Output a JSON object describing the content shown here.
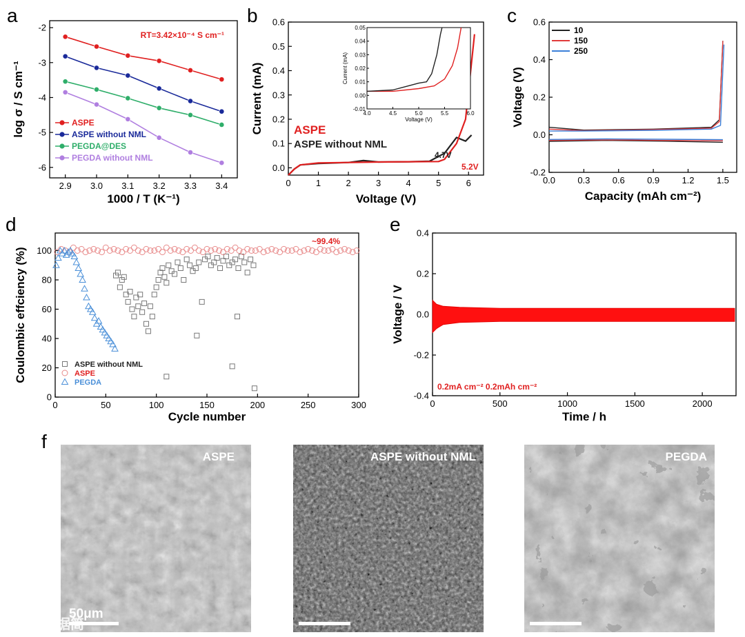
{
  "panel_labels": {
    "a": "a",
    "b": "b",
    "c": "c",
    "d": "d",
    "e": "e",
    "f": "f"
  },
  "colors": {
    "red": "#e02020",
    "blue": "#1a2a9a",
    "green": "#2fae6a",
    "purple": "#b07fe0",
    "black": "#222222",
    "gray": "#777777",
    "lightblue": "#4a8fd8",
    "c150": "#e03a3a",
    "c250": "#3a7fd8"
  },
  "chart_data": [
    {
      "panel": "a",
      "type": "line",
      "xlabel": "1000 / T (K⁻¹)",
      "ylabel": "log σ / S cm⁻¹",
      "xlim": [
        2.85,
        3.45
      ],
      "ylim": [
        -6.3,
        -1.8
      ],
      "xticks": [
        "2.9",
        "3.0",
        "3.1",
        "3.2",
        "3.3",
        "3.4"
      ],
      "yticks": [
        "-2",
        "-3",
        "-4",
        "-5",
        "-6"
      ],
      "x": [
        2.9,
        3.0,
        3.1,
        3.2,
        3.3,
        3.4
      ],
      "annotation": "RT=3.42×10⁻⁴ S cm⁻¹",
      "series": [
        {
          "name": "ASPE",
          "values": [
            -2.26,
            -2.54,
            -2.8,
            -2.95,
            -3.22,
            -3.48
          ]
        },
        {
          "name": "ASPE without NML",
          "values": [
            -2.82,
            -3.15,
            -3.37,
            -3.74,
            -4.1,
            -4.4
          ]
        },
        {
          "name": "PEGDA@DES",
          "values": [
            -3.54,
            -3.77,
            -4.02,
            -4.3,
            -4.5,
            -4.78
          ]
        },
        {
          "name": "PEGDA without NML",
          "values": [
            -3.85,
            -4.2,
            -4.62,
            -5.15,
            -5.57,
            -5.87
          ]
        }
      ]
    },
    {
      "panel": "b",
      "type": "line",
      "xlabel": "Voltage (V)",
      "ylabel": "Current (mA)",
      "xlim": [
        0,
        6.5
      ],
      "ylim": [
        -0.03,
        0.6
      ],
      "xticks": [
        "0",
        "1",
        "2",
        "3",
        "4",
        "5",
        "6"
      ],
      "yticks": [
        "0.0",
        "0.1",
        "0.2",
        "0.3",
        "0.4",
        "0.5",
        "0.6"
      ],
      "annotations": [
        "4.7V",
        "5.2V"
      ],
      "series": [
        {
          "name": "ASPE",
          "x": [
            0,
            0.2,
            0.4,
            1,
            2,
            3,
            4,
            5,
            5.2,
            5.6,
            5.9,
            6.2
          ],
          "values": [
            -0.03,
            -0.005,
            0.012,
            0.02,
            0.022,
            0.024,
            0.025,
            0.026,
            0.035,
            0.1,
            0.2,
            0.55
          ]
        },
        {
          "name": "ASPE without NML",
          "x": [
            0,
            0.2,
            0.4,
            1,
            2,
            2.5,
            3,
            4,
            4.7,
            5.2,
            5.6,
            5.9,
            6.1
          ],
          "values": [
            -0.03,
            -0.005,
            0.012,
            0.018,
            0.022,
            0.03,
            0.024,
            0.025,
            0.027,
            0.06,
            0.125,
            0.11,
            0.135
          ]
        }
      ],
      "inset": {
        "xlabel": "Voltage (V)",
        "ylabel": "Current (mA)",
        "xlim": [
          4.0,
          6.0
        ],
        "ylim": [
          -0.01,
          0.05
        ],
        "xticks": [
          "4.0",
          "4.5",
          "5.0",
          "5.5",
          "6.0"
        ],
        "yticks": [
          "-0.01",
          "0.00",
          "0.01",
          "0.02",
          "0.03",
          "0.04",
          "0.05"
        ],
        "series": [
          {
            "name": "ASPE",
            "x": [
              4.0,
              4.5,
              5.0,
              5.3,
              5.5,
              5.65,
              5.75,
              5.82
            ],
            "values": [
              0.003,
              0.003,
              0.005,
              0.007,
              0.012,
              0.022,
              0.035,
              0.05
            ]
          },
          {
            "name": "ASPE without NML",
            "x": [
              4.0,
              4.5,
              4.8,
              5.0,
              5.15,
              5.25,
              5.35,
              5.42,
              5.45
            ],
            "values": [
              0.003,
              0.004,
              0.007,
              0.009,
              0.01,
              0.016,
              0.03,
              0.045,
              0.05
            ]
          }
        ]
      }
    },
    {
      "panel": "c",
      "type": "line",
      "xlabel": "Capacity (mAh cm⁻²)",
      "ylabel": "Voltage (V)",
      "xlim": [
        0,
        1.62
      ],
      "ylim": [
        -0.2,
        0.6
      ],
      "xticks": [
        "0.0",
        "0.3",
        "0.6",
        "0.9",
        "1.2",
        "1.5"
      ],
      "yticks": [
        "0.6",
        "0.4",
        "0.2",
        "0.0",
        "-0.2"
      ],
      "series": [
        {
          "name": "10",
          "charge": [
            [
              0,
              0.04
            ],
            [
              0.3,
              0.025
            ],
            [
              0.9,
              0.03
            ],
            [
              1.4,
              0.04
            ],
            [
              1.47,
              0.08
            ],
            [
              1.5,
              0.5
            ]
          ],
          "discharge": [
            [
              0,
              -0.035
            ],
            [
              0.5,
              -0.03
            ],
            [
              1.0,
              -0.034
            ],
            [
              1.5,
              -0.04
            ]
          ]
        },
        {
          "name": "150",
          "charge": [
            [
              0,
              0.03
            ],
            [
              0.3,
              0.022
            ],
            [
              0.9,
              0.028
            ],
            [
              1.4,
              0.035
            ],
            [
              1.47,
              0.07
            ],
            [
              1.5,
              0.5
            ]
          ],
          "discharge": [
            [
              0,
              -0.03
            ],
            [
              0.5,
              -0.027
            ],
            [
              1.0,
              -0.03
            ],
            [
              1.5,
              -0.032
            ]
          ]
        },
        {
          "name": "250",
          "charge": [
            [
              0,
              0.02
            ],
            [
              0.3,
              0.02
            ],
            [
              0.9,
              0.024
            ],
            [
              1.4,
              0.03
            ],
            [
              1.48,
              0.05
            ],
            [
              1.51,
              0.48
            ]
          ],
          "discharge": [
            [
              0,
              -0.025
            ],
            [
              0.5,
              -0.022
            ],
            [
              1.0,
              -0.024
            ],
            [
              1.5,
              -0.026
            ]
          ]
        }
      ]
    },
    {
      "panel": "d",
      "type": "scatter",
      "xlabel": "Cycle number",
      "ylabel": "Coulombic effciency (%)",
      "xlim": [
        0,
        300
      ],
      "ylim": [
        0,
        112
      ],
      "xticks": [
        "0",
        "50",
        "100",
        "150",
        "200",
        "250",
        "300"
      ],
      "yticks": [
        "0",
        "20",
        "40",
        "60",
        "80",
        "100"
      ],
      "annotation": "~99.4%",
      "series": [
        {
          "name": "ASPE without NML",
          "marker": "square",
          "x": [
            60,
            62,
            64,
            66,
            68,
            70,
            72,
            74,
            76,
            78,
            80,
            82,
            84,
            86,
            88,
            90,
            92,
            94,
            96,
            98,
            100,
            102,
            104,
            106,
            108,
            110,
            112,
            115,
            118,
            121,
            124,
            127,
            130,
            133,
            136,
            139,
            142,
            145,
            148,
            151,
            154,
            157,
            160,
            163,
            166,
            169,
            172,
            175,
            178,
            181,
            184,
            187,
            190,
            193,
            196,
            140,
            175,
            110,
            180,
            197
          ],
          "values": [
            83,
            85,
            75,
            80,
            82,
            70,
            65,
            72,
            60,
            55,
            68,
            62,
            70,
            58,
            64,
            50,
            45,
            62,
            55,
            70,
            75,
            80,
            85,
            88,
            82,
            78,
            90,
            86,
            84,
            92,
            88,
            80,
            94,
            90,
            86,
            88,
            92,
            65,
            94,
            96,
            90,
            92,
            95,
            88,
            93,
            96,
            90,
            92,
            94,
            88,
            96,
            92,
            85,
            94,
            90,
            42,
            21,
            14,
            55,
            6
          ]
        },
        {
          "name": "ASPE",
          "marker": "circle",
          "x": [
            2,
            6,
            10,
            14,
            18,
            22,
            26,
            30,
            34,
            38,
            42,
            46,
            50,
            54,
            58,
            62,
            66,
            70,
            74,
            78,
            82,
            86,
            90,
            94,
            98,
            102,
            106,
            110,
            114,
            118,
            122,
            126,
            130,
            134,
            138,
            142,
            146,
            150,
            154,
            158,
            162,
            166,
            170,
            174,
            178,
            182,
            186,
            190,
            194,
            198,
            202,
            206,
            210,
            214,
            218,
            222,
            226,
            230,
            234,
            238,
            242,
            246,
            250,
            254,
            258,
            262,
            266,
            270,
            274,
            278,
            282,
            286,
            290,
            294,
            298
          ],
          "values": [
            99,
            101,
            100,
            99,
            102,
            100,
            101,
            99,
            100,
            101,
            100,
            99,
            102,
            100,
            101,
            100,
            99,
            101,
            100,
            102,
            100,
            99,
            101,
            100,
            100,
            101,
            99,
            102,
            100,
            101,
            100,
            99,
            101,
            100,
            102,
            100,
            99,
            101,
            100,
            101,
            100,
            99,
            101,
            100,
            102,
            100,
            99,
            101,
            100,
            100,
            101,
            99,
            100,
            101,
            100,
            99,
            101,
            100,
            100,
            101,
            99,
            100,
            101,
            100,
            99,
            101,
            100,
            100,
            101,
            99,
            100,
            101,
            100,
            99,
            100
          ]
        },
        {
          "name": "PEGDA",
          "marker": "triangle",
          "x": [
            1,
            3,
            5,
            7,
            9,
            11,
            13,
            15,
            17,
            19,
            21,
            23,
            25,
            27,
            29,
            31,
            33,
            35,
            37,
            39,
            41,
            43,
            45,
            47,
            49,
            51,
            53,
            55,
            57,
            59
          ],
          "values": [
            90,
            95,
            100,
            98,
            100,
            97,
            99,
            100,
            98,
            96,
            92,
            88,
            84,
            80,
            74,
            68,
            62,
            60,
            58,
            54,
            50,
            52,
            48,
            46,
            44,
            42,
            40,
            38,
            36,
            33
          ]
        }
      ]
    },
    {
      "panel": "e",
      "type": "area",
      "xlabel": "Time / h",
      "ylabel": "Voltage / V",
      "xlim": [
        0,
        2250
      ],
      "ylim": [
        -0.4,
        0.4
      ],
      "xticks": [
        "0",
        "500",
        "1000",
        "1500",
        "2000"
      ],
      "yticks": [
        "0.4",
        "0.2",
        "0.0",
        "-0.2",
        "-0.4"
      ],
      "annotation": "0.2mA cm⁻² 0.2mAh cm⁻²",
      "band": {
        "x": [
          0,
          30,
          80,
          200,
          500,
          1000,
          1500,
          2000,
          2240
        ],
        "upper": [
          0.07,
          0.05,
          0.04,
          0.035,
          0.03,
          0.03,
          0.03,
          0.03,
          0.03
        ],
        "lower": [
          -0.09,
          -0.07,
          -0.05,
          -0.04,
          -0.035,
          -0.035,
          -0.035,
          -0.035,
          -0.035
        ]
      }
    }
  ],
  "sem_images": [
    {
      "label": "ASPE",
      "scale": "50μm"
    },
    {
      "label": "ASPE without NML"
    },
    {
      "label": "PEGDA"
    }
  ],
  "watermark": "大数据简"
}
